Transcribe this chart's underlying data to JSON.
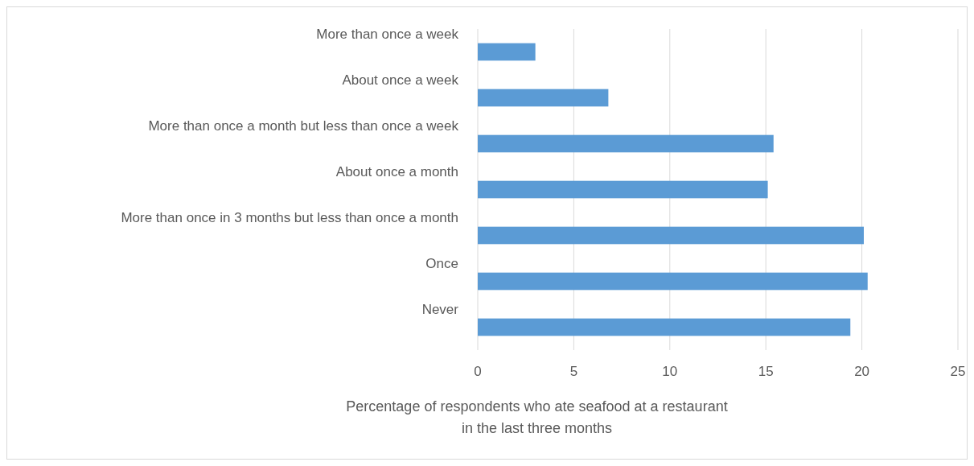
{
  "chart_data": {
    "type": "bar",
    "orientation": "horizontal",
    "categories": [
      "More than once a week",
      "About once a week",
      "More than once a month but less than once a week",
      "About once a month",
      "More than once in 3 months but less than once a month",
      "Once",
      "Never"
    ],
    "values": [
      3.0,
      6.8,
      15.4,
      15.1,
      20.1,
      20.3,
      19.4
    ],
    "color": "#5b9bd5",
    "xlim": [
      0,
      25
    ],
    "xticks": [
      0,
      5,
      10,
      15,
      20,
      25
    ],
    "grid": "x",
    "xlabel": "Percentage of respondents who ate seafood at a restaurant in the last three months"
  }
}
